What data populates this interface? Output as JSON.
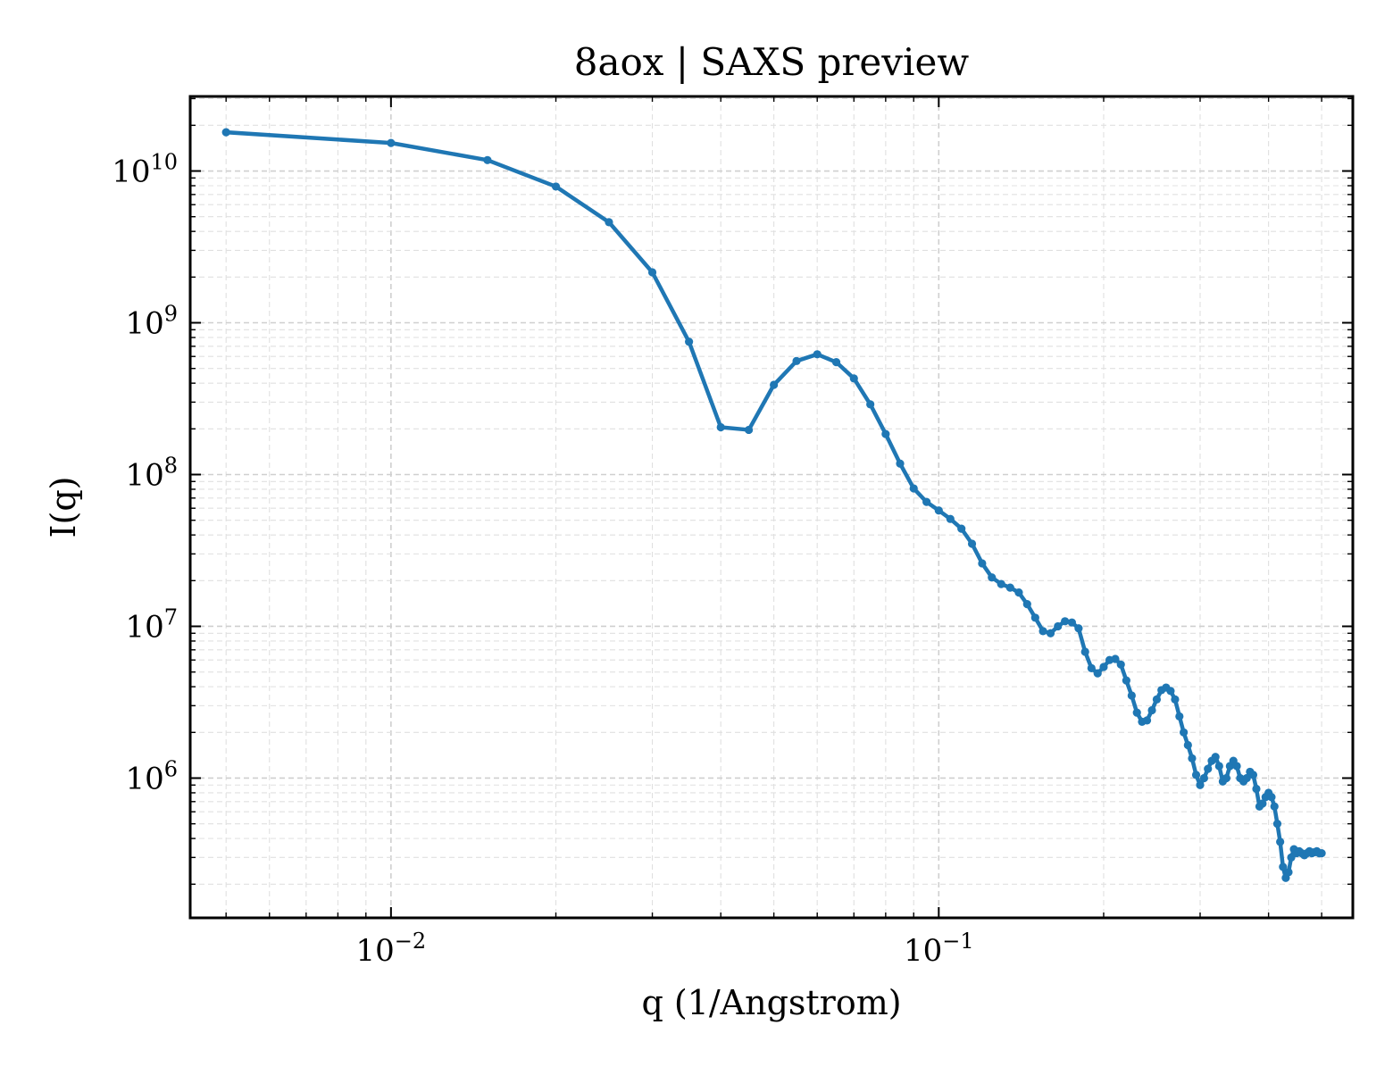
{
  "chart_data": {
    "type": "line",
    "title": "8aox | SAXS preview",
    "xlabel": "q (1/Angstrom)",
    "ylabel": "I(q)",
    "xscale": "log",
    "yscale": "log",
    "xlim": [
      0.0043,
      0.57
    ],
    "ylim": [
      120000,
      31000000000
    ],
    "grid": true,
    "x_ticks": [
      {
        "value": 0.01,
        "base": "10",
        "exp": "−2"
      },
      {
        "value": 0.1,
        "base": "10",
        "exp": "−1"
      }
    ],
    "y_ticks": [
      {
        "value": 1000000,
        "base": "10",
        "exp": "6"
      },
      {
        "value": 10000000,
        "base": "10",
        "exp": "7"
      },
      {
        "value": 100000000,
        "base": "10",
        "exp": "8"
      },
      {
        "value": 1000000000,
        "base": "10",
        "exp": "9"
      },
      {
        "value": 10000000000,
        "base": "10",
        "exp": "10"
      }
    ],
    "series": [
      {
        "color": "#1f77b4",
        "x": [
          0.005,
          0.01,
          0.015,
          0.02,
          0.025,
          0.03,
          0.035,
          0.04,
          0.045,
          0.05,
          0.055,
          0.06,
          0.065,
          0.07,
          0.075,
          0.08,
          0.085,
          0.09,
          0.095,
          0.1,
          0.105,
          0.11,
          0.115,
          0.12,
          0.125,
          0.13,
          0.135,
          0.14,
          0.145,
          0.15,
          0.155,
          0.16,
          0.165,
          0.17,
          0.175,
          0.18,
          0.185,
          0.19,
          0.195,
          0.2,
          0.205,
          0.21,
          0.215,
          0.22,
          0.225,
          0.23,
          0.235,
          0.24,
          0.245,
          0.25,
          0.255,
          0.26,
          0.265,
          0.27,
          0.275,
          0.28,
          0.285,
          0.29,
          0.295,
          0.3,
          0.305,
          0.31,
          0.315,
          0.32,
          0.325,
          0.33,
          0.335,
          0.34,
          0.345,
          0.35,
          0.355,
          0.36,
          0.365,
          0.37,
          0.375,
          0.38,
          0.385,
          0.39,
          0.395,
          0.4,
          0.405,
          0.41,
          0.415,
          0.42,
          0.425,
          0.43,
          0.435,
          0.44,
          0.445,
          0.45,
          0.455,
          0.46,
          0.465,
          0.47,
          0.475,
          0.48,
          0.485,
          0.49,
          0.495,
          0.5
        ],
        "y": [
          18000000000,
          15300000000,
          11800000000,
          7900000000,
          4600000000,
          2150000000,
          750000000,
          205000000,
          197000000,
          390000000,
          560000000,
          620000000,
          550000000,
          430000000,
          290000000,
          185000000,
          118000000,
          81000000,
          66000000,
          58000000,
          51000000,
          44000000,
          35000000,
          26000000,
          21000000,
          19000000,
          18000000,
          16700000,
          14000000,
          11400000,
          9300000,
          9000000,
          10000000,
          10800000,
          10600000,
          9700000,
          6800000,
          5300000,
          4900000,
          5400000,
          6000000,
          6100000,
          5600000,
          4400000,
          3500000,
          2700000,
          2350000,
          2400000,
          2800000,
          3300000,
          3800000,
          3950000,
          3750000,
          3300000,
          2550000,
          2000000,
          1650000,
          1350000,
          1050000,
          900000,
          1000000,
          1150000,
          1300000,
          1380000,
          1200000,
          950000,
          1000000,
          1200000,
          1300000,
          1200000,
          1000000,
          950000,
          1000000,
          1100000,
          1050000,
          850000,
          650000,
          680000,
          750000,
          800000,
          750000,
          650000,
          500000,
          380000,
          260000,
          220000,
          240000,
          300000,
          340000,
          320000,
          330000,
          320000,
          310000,
          320000,
          330000,
          320000,
          325000,
          330000,
          320000,
          320000
        ]
      }
    ]
  }
}
